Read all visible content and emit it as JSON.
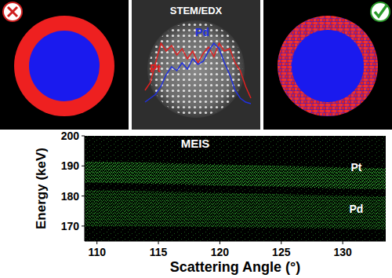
{
  "stem_edx": {
    "title": "STEM/EDX",
    "profiles": [
      {
        "name": "Pt",
        "color": "#e02020",
        "position": [
          0,
          0.05,
          0.1,
          0.15,
          0.2,
          0.25,
          0.3,
          0.35,
          0.4,
          0.45,
          0.5,
          0.55,
          0.6,
          0.65,
          0.7,
          0.75,
          0.8,
          0.85,
          0.9,
          0.95,
          1
        ],
        "values": [
          35,
          45,
          70,
          95,
          85,
          92,
          80,
          88,
          75,
          85,
          70,
          82,
          90,
          78,
          95,
          85,
          88,
          70,
          60,
          40,
          25
        ]
      },
      {
        "name": "Pd",
        "color": "#2030e0",
        "position": [
          0,
          0.05,
          0.1,
          0.15,
          0.2,
          0.25,
          0.3,
          0.35,
          0.4,
          0.45,
          0.5,
          0.55,
          0.6,
          0.65,
          0.7,
          0.75,
          0.8,
          0.85,
          0.9,
          0.95,
          1
        ],
        "values": [
          20,
          25,
          30,
          40,
          55,
          65,
          60,
          70,
          62,
          75,
          68,
          72,
          85,
          95,
          88,
          70,
          55,
          35,
          25,
          20,
          18
        ]
      }
    ]
  },
  "chart_data": {
    "type": "area",
    "title": "MEIS",
    "x_label": "Scattering Angle (°)",
    "y_label": "Energy (keV)",
    "x": [
      109,
      113,
      117,
      121,
      125,
      129,
      133.5
    ],
    "series": [
      {
        "color": "#3ad13a",
        "upper": [
          191.5,
          191.2,
          190.8,
          190.4,
          190,
          189.6,
          189.2
        ],
        "lower": [
          184.5,
          184.2,
          183.8,
          183.4,
          183,
          182.6,
          182.2
        ]
      },
      {
        "color": "#2aa02a",
        "upper": [
          182,
          181.7,
          181.3,
          181,
          180.6,
          180.2,
          179.8
        ],
        "lower": [
          170,
          170,
          169.8,
          169.6,
          169.4,
          169.2,
          169
        ]
      }
    ],
    "annotations": [
      {
        "text": "Pt",
        "x": 131.1,
        "y": 189.5
      },
      {
        "text": "Pd",
        "x": 131.1,
        "y": 175.7
      }
    ],
    "xlim": [
      109,
      133.5
    ],
    "xticks": [
      110,
      115,
      120,
      125,
      130
    ],
    "ylim": [
      165,
      200
    ],
    "yticks": [
      170,
      180,
      190,
      200
    ]
  }
}
